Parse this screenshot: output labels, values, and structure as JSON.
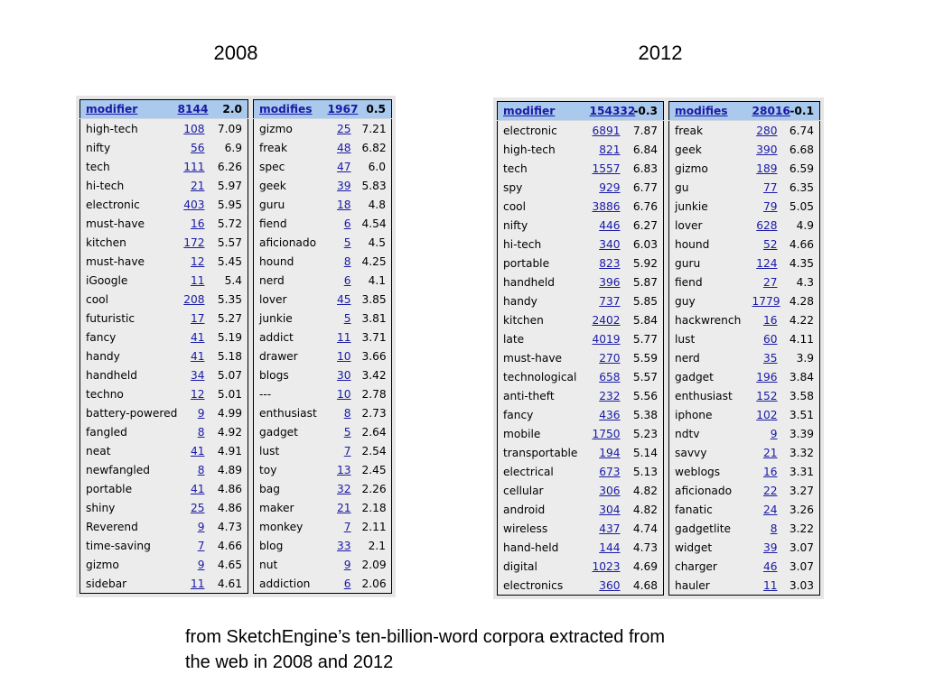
{
  "headings": {
    "y2008": "2008",
    "y2012": "2012"
  },
  "caption": {
    "line1": "from SketchEngine’s ten-billion-word corpora extracted from",
    "line2": "the web in 2008 and 2012"
  },
  "tables": {
    "t2008_modifier": {
      "header": {
        "label": "modifier",
        "count": "8144",
        "score": "2.0"
      },
      "rows": [
        [
          "high-tech",
          "108",
          "7.09"
        ],
        [
          "nifty",
          "56",
          "6.9"
        ],
        [
          "tech",
          "111",
          "6.26"
        ],
        [
          "hi-tech",
          "21",
          "5.97"
        ],
        [
          "electronic",
          "403",
          "5.95"
        ],
        [
          "must-have",
          "16",
          "5.72"
        ],
        [
          "kitchen",
          "172",
          "5.57"
        ],
        [
          "must-have",
          "12",
          "5.45"
        ],
        [
          "iGoogle",
          "11",
          "5.4"
        ],
        [
          "cool",
          "208",
          "5.35"
        ],
        [
          "futuristic",
          "17",
          "5.27"
        ],
        [
          "fancy",
          "41",
          "5.19"
        ],
        [
          "handy",
          "41",
          "5.18"
        ],
        [
          "handheld",
          "34",
          "5.07"
        ],
        [
          "techno",
          "12",
          "5.01"
        ],
        [
          "battery-powered",
          "9",
          "4.99"
        ],
        [
          "fangled",
          "8",
          "4.92"
        ],
        [
          "neat",
          "41",
          "4.91"
        ],
        [
          "newfangled",
          "8",
          "4.89"
        ],
        [
          "portable",
          "41",
          "4.86"
        ],
        [
          "shiny",
          "25",
          "4.86"
        ],
        [
          "Reverend",
          "9",
          "4.73"
        ],
        [
          "time-saving",
          "7",
          "4.66"
        ],
        [
          "gizmo",
          "9",
          "4.65"
        ],
        [
          "sidebar",
          "11",
          "4.61"
        ]
      ]
    },
    "t2008_modifies": {
      "header": {
        "label": "modifies",
        "count": "1967",
        "score": "0.5"
      },
      "rows": [
        [
          "gizmo",
          "25",
          "7.21"
        ],
        [
          "freak",
          "48",
          "6.82"
        ],
        [
          "spec",
          "47",
          "6.0"
        ],
        [
          "geek",
          "39",
          "5.83"
        ],
        [
          "guru",
          "18",
          "4.8"
        ],
        [
          "fiend",
          "6",
          "4.54"
        ],
        [
          "aficionado",
          "5",
          "4.5"
        ],
        [
          "hound",
          "8",
          "4.25"
        ],
        [
          "nerd",
          "6",
          "4.1"
        ],
        [
          "lover",
          "45",
          "3.85"
        ],
        [
          "junkie",
          "5",
          "3.81"
        ],
        [
          "addict",
          "11",
          "3.71"
        ],
        [
          "drawer",
          "10",
          "3.66"
        ],
        [
          "blogs",
          "30",
          "3.42"
        ],
        [
          "---",
          "10",
          "2.78"
        ],
        [
          "enthusiast",
          "8",
          "2.73"
        ],
        [
          "gadget",
          "5",
          "2.64"
        ],
        [
          "lust",
          "7",
          "2.54"
        ],
        [
          "toy",
          "13",
          "2.45"
        ],
        [
          "bag",
          "32",
          "2.26"
        ],
        [
          "maker",
          "21",
          "2.18"
        ],
        [
          "monkey",
          "7",
          "2.11"
        ],
        [
          "blog",
          "33",
          "2.1"
        ],
        [
          "nut",
          "9",
          "2.09"
        ],
        [
          "addiction",
          "6",
          "2.06"
        ]
      ]
    },
    "t2012_modifier": {
      "header": {
        "label": "modifier",
        "count": "154332",
        "score": "-0.3"
      },
      "rows": [
        [
          "electronic",
          "6891",
          "7.87"
        ],
        [
          "high-tech",
          "821",
          "6.84"
        ],
        [
          "tech",
          "1557",
          "6.83"
        ],
        [
          "spy",
          "929",
          "6.77"
        ],
        [
          "cool",
          "3886",
          "6.76"
        ],
        [
          "nifty",
          "446",
          "6.27"
        ],
        [
          "hi-tech",
          "340",
          "6.03"
        ],
        [
          "portable",
          "823",
          "5.92"
        ],
        [
          "handheld",
          "396",
          "5.87"
        ],
        [
          "handy",
          "737",
          "5.85"
        ],
        [
          "kitchen",
          "2402",
          "5.84"
        ],
        [
          "late",
          "4019",
          "5.77"
        ],
        [
          "must-have",
          "270",
          "5.59"
        ],
        [
          "technological",
          "658",
          "5.57"
        ],
        [
          "anti-theft",
          "232",
          "5.56"
        ],
        [
          "fancy",
          "436",
          "5.38"
        ],
        [
          "mobile",
          "1750",
          "5.23"
        ],
        [
          "transportable",
          "194",
          "5.14"
        ],
        [
          "electrical",
          "673",
          "5.13"
        ],
        [
          "cellular",
          "306",
          "4.82"
        ],
        [
          "android",
          "304",
          "4.82"
        ],
        [
          "wireless",
          "437",
          "4.74"
        ],
        [
          "hand-held",
          "144",
          "4.73"
        ],
        [
          "digital",
          "1023",
          "4.69"
        ],
        [
          "electronics",
          "360",
          "4.68"
        ]
      ]
    },
    "t2012_modifies": {
      "header": {
        "label": "modifies",
        "count": "28016",
        "score": "-0.1"
      },
      "rows": [
        [
          "freak",
          "280",
          "6.74"
        ],
        [
          "geek",
          "390",
          "6.68"
        ],
        [
          "gizmo",
          "189",
          "6.59"
        ],
        [
          "gu",
          "77",
          "6.35"
        ],
        [
          "junkie",
          "79",
          "5.05"
        ],
        [
          "lover",
          "628",
          "4.9"
        ],
        [
          "hound",
          "52",
          "4.66"
        ],
        [
          "guru",
          "124",
          "4.35"
        ],
        [
          "fiend",
          "27",
          "4.3"
        ],
        [
          "guy",
          "1779",
          "4.28"
        ],
        [
          "hackwrench",
          "16",
          "4.22"
        ],
        [
          "lust",
          "60",
          "4.11"
        ],
        [
          "nerd",
          "35",
          "3.9"
        ],
        [
          "gadget",
          "196",
          "3.84"
        ],
        [
          "enthusiast",
          "152",
          "3.58"
        ],
        [
          "iphone",
          "102",
          "3.51"
        ],
        [
          "ndtv",
          "9",
          "3.39"
        ],
        [
          "savvy",
          "21",
          "3.32"
        ],
        [
          "weblogs",
          "16",
          "3.31"
        ],
        [
          "aficionado",
          "22",
          "3.27"
        ],
        [
          "fanatic",
          "24",
          "3.26"
        ],
        [
          "gadgetlite",
          "8",
          "3.22"
        ],
        [
          "widget",
          "39",
          "3.07"
        ],
        [
          "charger",
          "46",
          "3.07"
        ],
        [
          "hauler",
          "11",
          "3.03"
        ]
      ]
    }
  }
}
